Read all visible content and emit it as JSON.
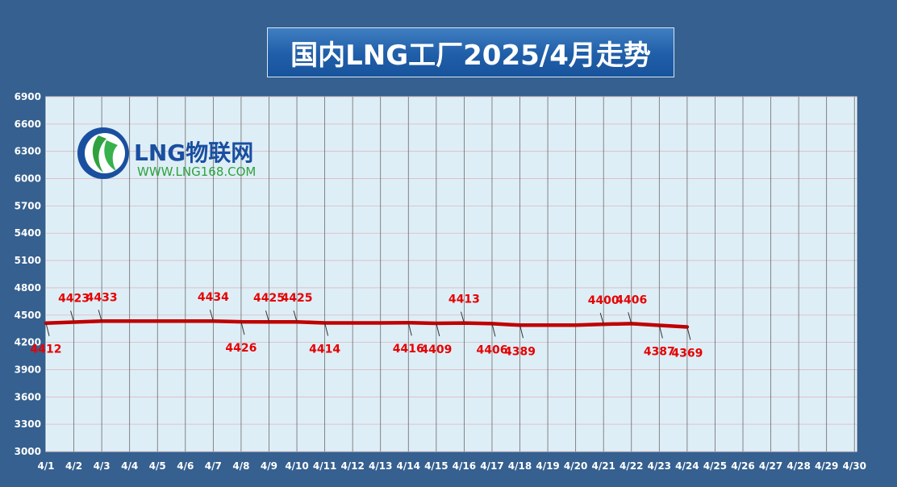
{
  "chart_data": {
    "type": "line",
    "title": "国内LNG工厂2025/4月走势",
    "categories": [
      "4/1",
      "4/2",
      "4/3",
      "4/4",
      "4/5",
      "4/6",
      "4/7",
      "4/8",
      "4/9",
      "4/10",
      "4/11",
      "4/12",
      "4/13",
      "4/14",
      "4/15",
      "4/16",
      "4/17",
      "4/18",
      "4/19",
      "4/20",
      "4/21",
      "4/22",
      "4/23",
      "4/24",
      "4/25",
      "4/26",
      "4/27",
      "4/28",
      "4/29",
      "4/30"
    ],
    "values": [
      4412,
      4423,
      4433,
      4433,
      4433,
      4433,
      4434,
      4426,
      4425,
      4425,
      4414,
      4414,
      4414,
      4416,
      4409,
      4413,
      4406,
      4389,
      4389,
      4389,
      4400,
      4406,
      4387,
      4369,
      null,
      null,
      null,
      null,
      null,
      null
    ],
    "ylim": [
      3000,
      6900
    ],
    "yticks": [
      3000,
      3300,
      3600,
      3900,
      4200,
      4500,
      4800,
      5100,
      5400,
      5700,
      6000,
      6300,
      6600,
      6900
    ],
    "grid": true,
    "line_color": "#c00000",
    "label_color": "#e60000",
    "labels": [
      {
        "x": "4/1",
        "text": "4412",
        "pos": "below"
      },
      {
        "x": "4/2",
        "text": "4423",
        "pos": "above"
      },
      {
        "x": "4/3",
        "text": "4433",
        "pos": "above"
      },
      {
        "x": "4/7",
        "text": "4434",
        "pos": "above"
      },
      {
        "x": "4/8",
        "text": "4426",
        "pos": "below"
      },
      {
        "x": "4/9",
        "text": "4425",
        "pos": "above"
      },
      {
        "x": "4/10",
        "text": "4425",
        "pos": "above"
      },
      {
        "x": "4/11",
        "text": "4414",
        "pos": "below"
      },
      {
        "x": "4/14",
        "text": "4416",
        "pos": "below"
      },
      {
        "x": "4/15",
        "text": "4409",
        "pos": "below"
      },
      {
        "x": "4/16",
        "text": "4413",
        "pos": "above"
      },
      {
        "x": "4/17",
        "text": "4406",
        "pos": "below"
      },
      {
        "x": "4/18",
        "text": "4389",
        "pos": "below"
      },
      {
        "x": "4/21",
        "text": "4400",
        "pos": "above"
      },
      {
        "x": "4/22",
        "text": "4406",
        "pos": "above"
      },
      {
        "x": "4/23",
        "text": "4387",
        "pos": "below"
      },
      {
        "x": "4/24",
        "text": "4369",
        "pos": "below"
      }
    ]
  },
  "watermark": {
    "brand": "LNG物联网",
    "url": "WWW.LNG168.COM"
  }
}
